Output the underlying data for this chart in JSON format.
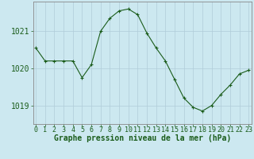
{
  "hours": [
    0,
    1,
    2,
    3,
    4,
    5,
    6,
    7,
    8,
    9,
    10,
    11,
    12,
    13,
    14,
    15,
    16,
    17,
    18,
    19,
    20,
    21,
    22,
    23
  ],
  "pressure": [
    1020.55,
    1020.2,
    1020.2,
    1020.2,
    1020.2,
    1019.75,
    1020.1,
    1021.0,
    1021.35,
    1021.55,
    1021.6,
    1021.45,
    1020.95,
    1020.55,
    1020.2,
    1019.7,
    1019.2,
    1018.95,
    1018.85,
    1019.0,
    1019.3,
    1019.55,
    1019.85,
    1019.95
  ],
  "line_color": "#1a5c1a",
  "marker_color": "#1a5c1a",
  "bg_color": "#cce8f0",
  "grid_color": "#b0ccd8",
  "xlabel": "Graphe pression niveau de la mer (hPa)",
  "ylabel_ticks": [
    1019,
    1020,
    1021
  ],
  "ylim": [
    1018.5,
    1021.8
  ],
  "xlim": [
    -0.3,
    23.3
  ],
  "axis_label_fontsize": 7,
  "tick_fontsize": 6
}
